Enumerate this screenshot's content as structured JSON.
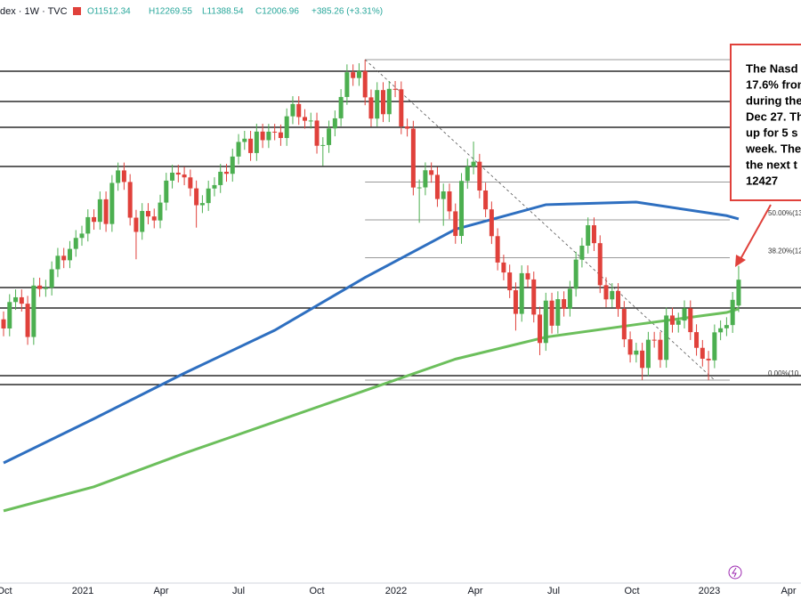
{
  "chart_data": {
    "type": "candlestick",
    "header": {
      "symbol": "dex · 1W · TVC",
      "open": "O11512.34",
      "high": "H12269.55",
      "low": "L11388.54",
      "close": "C12006.96",
      "change": "+385.26 (+3.31%)"
    },
    "ylim": [
      6210,
      17351
    ],
    "xticks": [
      "Oct",
      "2021",
      "Apr",
      "Jul",
      "Oct",
      "2022",
      "Apr",
      "Jul",
      "Oct",
      "2023",
      "Apr"
    ],
    "up_color": "#4caf50",
    "down_color": "#e0413b",
    "candles": [
      [
        11250,
        11400,
        10925,
        11075
      ],
      [
        11075,
        11730,
        10925,
        11580
      ],
      [
        11580,
        11821,
        11430,
        11671
      ],
      [
        11671,
        11821,
        11398,
        11548
      ],
      [
        11548,
        11698,
        10762,
        10912
      ],
      [
        10912,
        12045,
        10762,
        11895
      ],
      [
        11895,
        12045,
        11680,
        11830
      ],
      [
        11830,
        12005,
        11680,
        11855
      ],
      [
        11855,
        12356,
        11705,
        12206
      ],
      [
        12206,
        12614,
        12056,
        12464
      ],
      [
        12464,
        12614,
        12228,
        12378
      ],
      [
        12378,
        12745,
        12228,
        12595
      ],
      [
        12595,
        12955,
        12445,
        12805
      ],
      [
        12805,
        13038,
        12655,
        12888
      ],
      [
        12888,
        13352,
        12738,
        13202
      ],
      [
        13202,
        13352,
        12962,
        13112
      ],
      [
        13112,
        13693,
        12962,
        13543
      ],
      [
        13543,
        13693,
        12921,
        13071
      ],
      [
        13071,
        14006,
        12921,
        13856
      ],
      [
        13856,
        14245,
        13706,
        14095
      ],
      [
        14095,
        14245,
        13724,
        13874
      ],
      [
        13874,
        14024,
        13042,
        13192
      ],
      [
        13192,
        13342,
        12397,
        12920
      ],
      [
        12920,
        13470,
        12770,
        13320
      ],
      [
        13320,
        13470,
        13065,
        13215
      ],
      [
        13215,
        13365,
        12989,
        13139
      ],
      [
        13139,
        13630,
        12989,
        13480
      ],
      [
        13480,
        14050,
        13330,
        13900
      ],
      [
        13900,
        14202,
        13750,
        14052
      ],
      [
        14052,
        14202,
        13866,
        14016
      ],
      [
        14016,
        14166,
        13812,
        13962
      ],
      [
        13962,
        14112,
        13602,
        13752
      ],
      [
        13752,
        13902,
        13002,
        13430
      ],
      [
        13430,
        13621,
        13280,
        13471
      ],
      [
        13471,
        13899,
        13321,
        13749
      ],
      [
        13749,
        13964,
        13599,
        13814
      ],
      [
        13814,
        14219,
        13664,
        14069
      ],
      [
        14069,
        14219,
        13880,
        14030
      ],
      [
        14030,
        14510,
        13880,
        14360
      ],
      [
        14360,
        14789,
        14210,
        14639
      ],
      [
        14639,
        14851,
        14489,
        14701
      ],
      [
        14701,
        14851,
        14277,
        14427
      ],
      [
        14427,
        14987,
        14277,
        14837
      ],
      [
        14837,
        14987,
        14523,
        14673
      ],
      [
        14673,
        14985,
        14523,
        14835
      ],
      [
        14835,
        14985,
        14672,
        14822
      ],
      [
        14822,
        14972,
        14564,
        14714
      ],
      [
        14714,
        15279,
        14564,
        15129
      ],
      [
        15129,
        15513,
        14979,
        15363
      ],
      [
        15363,
        15513,
        14965,
        15115
      ],
      [
        15115,
        15265,
        14894,
        15044
      ],
      [
        15044,
        15198,
        14894,
        15048
      ],
      [
        15048,
        15198,
        14416,
        14566
      ],
      [
        14566,
        14730,
        14182,
        14580
      ],
      [
        14580,
        15047,
        14430,
        14897
      ],
      [
        14897,
        15240,
        14747,
        15090
      ],
      [
        15090,
        15648,
        14940,
        15498
      ],
      [
        15498,
        16121,
        15348,
        15971
      ],
      [
        15971,
        16121,
        15710,
        15860
      ],
      [
        15860,
        16143,
        15710,
        15993
      ],
      [
        15993,
        16212,
        15341,
        15491
      ],
      [
        15491,
        15641,
        14931,
        15085
      ],
      [
        15085,
        15780,
        14935,
        15630
      ],
      [
        15630,
        15780,
        15019,
        15169
      ],
      [
        15169,
        15803,
        15019,
        15653
      ],
      [
        15653,
        15803,
        15495,
        15645
      ],
      [
        15645,
        15795,
        14786,
        14936
      ],
      [
        14936,
        15086,
        14743,
        14893
      ],
      [
        14893,
        15043,
        13618,
        13768
      ],
      [
        13768,
        13920,
        13094,
        13770
      ],
      [
        13770,
        14248,
        13620,
        14098
      ],
      [
        14098,
        14248,
        13860,
        14010
      ],
      [
        14010,
        14160,
        13398,
        13548
      ],
      [
        13548,
        13844,
        13037,
        13694
      ],
      [
        13694,
        13844,
        13163,
        13313
      ],
      [
        13313,
        13463,
        12693,
        12843
      ],
      [
        12843,
        14044,
        12693,
        13894
      ],
      [
        13894,
        14319,
        13744,
        14169
      ],
      [
        14169,
        14646,
        14019,
        14261
      ],
      [
        14261,
        14411,
        13561,
        13711
      ],
      [
        13711,
        13861,
        13201,
        13351
      ],
      [
        13351,
        13501,
        12689,
        12839
      ],
      [
        12839,
        12989,
        12185,
        12335
      ],
      [
        12335,
        12485,
        11995,
        12145
      ],
      [
        12145,
        12295,
        11655,
        11805
      ],
      [
        11805,
        11955,
        11035,
        11354
      ],
      [
        11354,
        12281,
        11204,
        12131
      ],
      [
        12131,
        12281,
        11862,
        12012
      ],
      [
        12012,
        12162,
        11190,
        11340
      ],
      [
        11340,
        11490,
        10565,
        10798
      ],
      [
        10798,
        11757,
        10648,
        11607
      ],
      [
        11607,
        11757,
        10978,
        11128
      ],
      [
        11128,
        11785,
        10978,
        11635
      ],
      [
        11635,
        11785,
        11302,
        11452
      ],
      [
        11452,
        11984,
        11302,
        11834
      ],
      [
        11834,
        12541,
        11684,
        12391
      ],
      [
        12391,
        12807,
        12241,
        12657
      ],
      [
        12657,
        13197,
        12507,
        13047
      ],
      [
        13047,
        13197,
        12555,
        12705
      ],
      [
        12705,
        12855,
        11752,
        11902
      ],
      [
        11902,
        12052,
        11481,
        11631
      ],
      [
        11631,
        11941,
        11481,
        11791
      ],
      [
        11791,
        11941,
        11298,
        11448
      ],
      [
        11448,
        11598,
        10718,
        10868
      ],
      [
        10868,
        11018,
        10425,
        10575
      ],
      [
        10575,
        10802,
        10425,
        10652
      ],
      [
        10652,
        10802,
        10089,
        10321
      ],
      [
        10321,
        11010,
        10171,
        10860
      ],
      [
        10860,
        11010,
        10709,
        10859
      ],
      [
        10859,
        11009,
        10325,
        10475
      ],
      [
        10475,
        11473,
        10325,
        11323
      ],
      [
        11323,
        11473,
        10996,
        11146
      ],
      [
        11146,
        11376,
        10996,
        11226
      ],
      [
        11226,
        11611,
        11076,
        11461
      ],
      [
        11461,
        11611,
        10855,
        11005
      ],
      [
        11005,
        11155,
        10555,
        10705
      ],
      [
        10705,
        10855,
        10347,
        10497
      ],
      [
        10497,
        10647,
        10088,
        10466
      ],
      [
        10466,
        11151,
        10316,
        11001
      ],
      [
        11001,
        11229,
        10851,
        11079
      ],
      [
        11079,
        11290,
        10929,
        11140
      ],
      [
        11140,
        11772,
        10990,
        11622
      ],
      [
        11512.34,
        12269.55,
        11388.54,
        12006.96
      ]
    ],
    "moving_averages": [
      {
        "color": "#2e6fc0",
        "x": [
          0,
          15,
          30,
          45,
          60,
          75,
          90,
          105,
          120,
          122
        ],
        "values": [
          8506,
          9350,
          10220,
          11040,
          12050,
          12970,
          13440,
          13490,
          13230,
          13167
        ]
      },
      {
        "color": "#6cbf5c",
        "x": [
          0,
          15,
          30,
          45,
          60,
          75,
          90,
          105,
          120,
          122
        ],
        "values": [
          7590,
          8050,
          8690,
          9290,
          9890,
          10490,
          10910,
          11150,
          11380,
          11449
        ]
      }
    ],
    "support_lines": [
      15990,
      15412,
      14919,
      14170,
      11857,
      11466,
      10173,
      10003
    ],
    "fib": {
      "levels": [
        10088,
        12427,
        13150,
        13873,
        16212
      ],
      "labels": [
        "0.00%(10",
        "38.20%(12",
        "50.00%(13",
        null,
        null
      ]
    },
    "annotation": [
      "The Nasd",
      "17.6% fron",
      "during the",
      "Dec 27. Th",
      "up for 5 s",
      "week. The",
      "the next t",
      "12427"
    ]
  }
}
